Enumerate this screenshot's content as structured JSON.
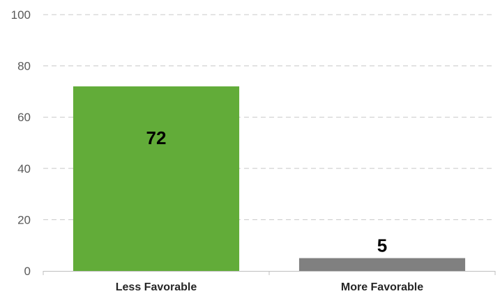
{
  "chart_data": {
    "type": "bar",
    "title": "",
    "xlabel": "",
    "ylabel": "",
    "categories": [
      "Less Favorable",
      "More Favorable"
    ],
    "values": [
      72,
      5
    ],
    "data_labels": [
      "72",
      "5"
    ],
    "bar_colors": [
      "#62AC39",
      "#808080"
    ],
    "ylim": [
      0,
      100
    ],
    "yticks": [
      0,
      20,
      40,
      60,
      80,
      100
    ],
    "ytick_labels": [
      "0",
      "20",
      "40",
      "60",
      "80",
      "100"
    ],
    "grid": true,
    "legend": "none"
  },
  "colors": {
    "grid": "#C8C8C8",
    "axis": "#BFBFBF"
  }
}
